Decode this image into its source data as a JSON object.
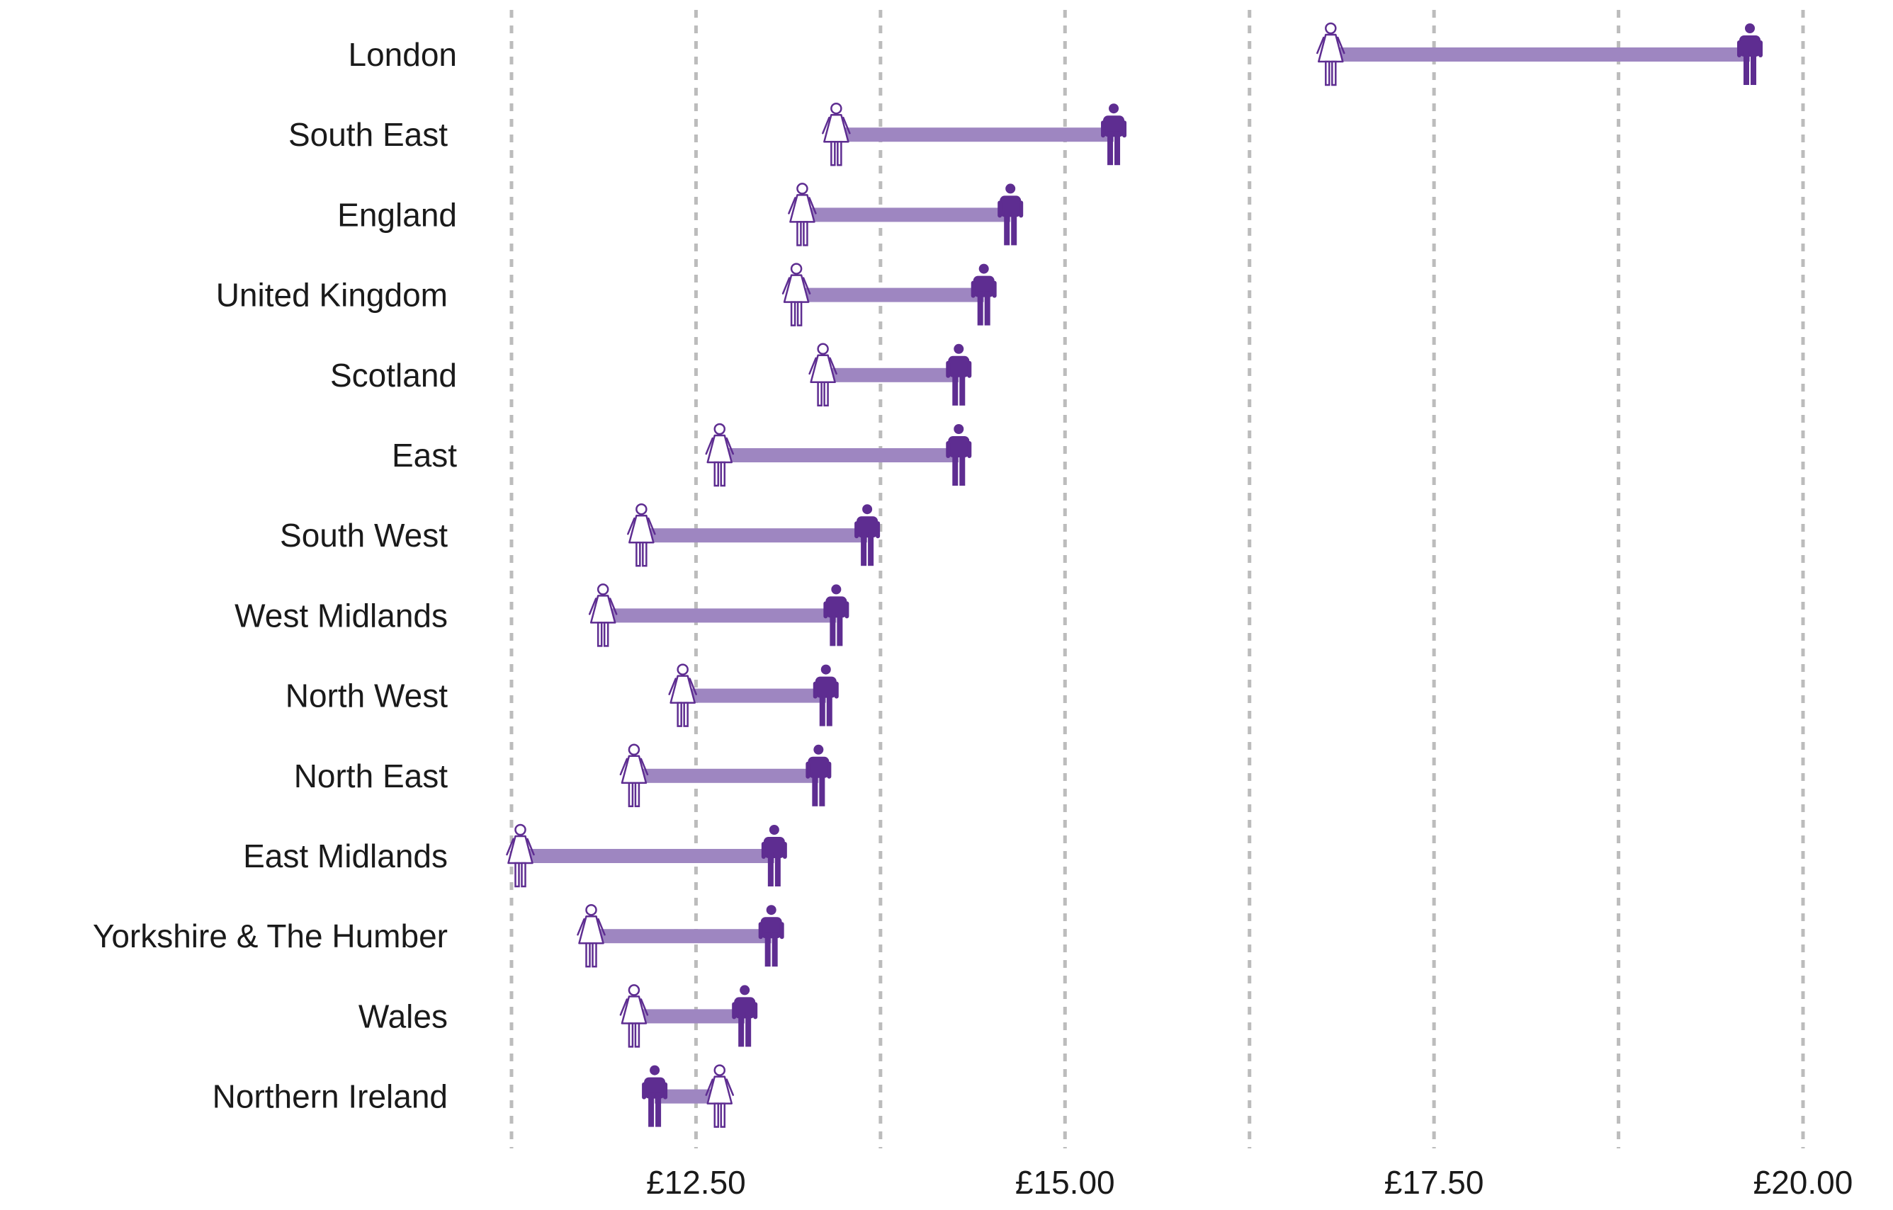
{
  "chart_data": {
    "type": "dumbbell",
    "title": "",
    "xlabel": "",
    "ylabel": "",
    "xlim": [
      11.25,
      20.0
    ],
    "x_ticks": [
      {
        "value": 12.5,
        "label": "£12.50"
      },
      {
        "value": 15.0,
        "label": "£15.00"
      },
      {
        "value": 17.5,
        "label": "£17.50"
      },
      {
        "value": 20.0,
        "label": "£20.00"
      }
    ],
    "gridlines": [
      11.25,
      12.5,
      13.75,
      15.0,
      16.25,
      17.5,
      18.75,
      20.0
    ],
    "grid": true,
    "categories": [
      "London",
      "South East",
      "England",
      "United Kingdom",
      "Scotland",
      "East",
      "South West",
      "West Midlands",
      "North West",
      "North East",
      "East Midlands",
      "Yorkshire & The Humber",
      "Wales",
      "Northern Ireland"
    ],
    "series": [
      {
        "key": "women",
        "values": [
          16.8,
          13.45,
          13.22,
          13.18,
          13.36,
          12.66,
          12.13,
          11.87,
          12.41,
          12.08,
          11.31,
          11.79,
          12.08,
          12.66
        ]
      },
      {
        "key": "men",
        "values": [
          19.64,
          15.33,
          14.63,
          14.45,
          14.28,
          14.28,
          13.66,
          13.45,
          13.38,
          13.33,
          13.03,
          13.01,
          12.83,
          12.22
        ]
      }
    ],
    "colors": {
      "women": "#ffffff",
      "women_outline": "#5e2d91",
      "men": "#5e2d91",
      "bar": "#9e86c1"
    }
  }
}
